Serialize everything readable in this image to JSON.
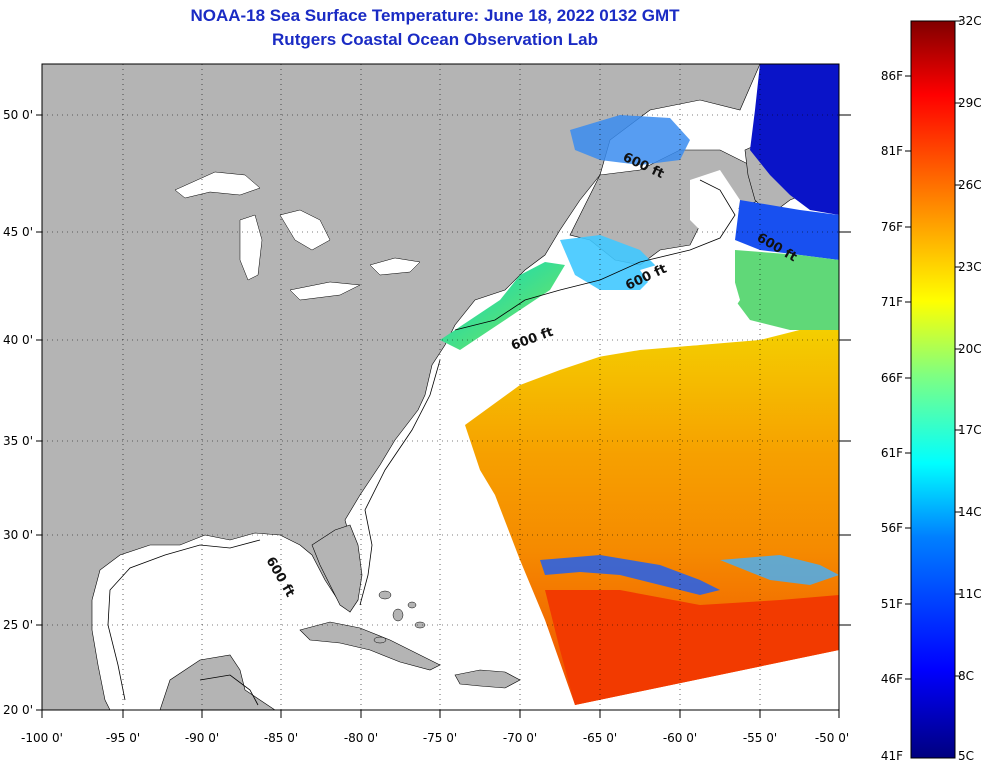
{
  "header": {
    "title": "NOAA-18 Sea Surface Temperature:  June 18, 2022 0132 GMT",
    "subtitle": "Rutgers Coastal Ocean Observation Lab"
  },
  "map": {
    "lon_labels": [
      "-100 0'",
      "-95 0'",
      "-90 0'",
      "-85 0'",
      "-80 0'",
      "-75 0'",
      "-70 0'",
      "-65 0'",
      "-60 0'",
      "-55 0'",
      "-50 0'"
    ],
    "lat_labels": [
      "50 0'",
      "45 0'",
      "40 0'",
      "35 0'",
      "30 0'",
      "25 0'",
      "20 0'"
    ],
    "lat_values": [
      50,
      45,
      40,
      35,
      30,
      25,
      20
    ],
    "lon_range": [
      -100,
      -50
    ],
    "lat_range": [
      20,
      52.5
    ],
    "isobath_label": "600 ft",
    "land_color": "#b4b4b4",
    "cloud_color": "#ffffff"
  },
  "colorbar": {
    "fahrenheit_labels": [
      "86F",
      "81F",
      "76F",
      "71F",
      "66F",
      "61F",
      "56F",
      "51F",
      "46F",
      "41F"
    ],
    "celsius_labels": [
      "32C",
      "29C",
      "26C",
      "23C",
      "20C",
      "17C",
      "14C",
      "11C",
      "8C",
      "5C"
    ],
    "range_c": [
      5,
      32
    ],
    "stops": [
      "#000080",
      "#0000ff",
      "#0080ff",
      "#00ffff",
      "#80ff80",
      "#ffff00",
      "#ff8000",
      "#ff0000",
      "#800000"
    ]
  }
}
